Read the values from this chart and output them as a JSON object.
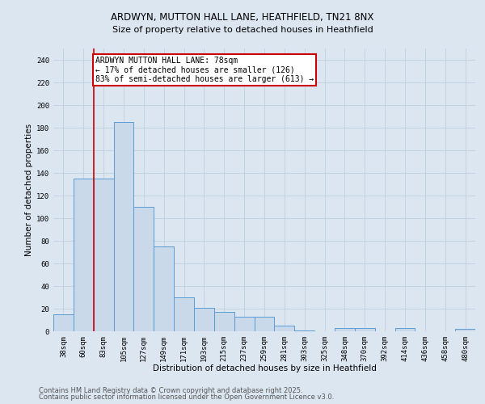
{
  "title_line1": "ARDWYN, MUTTON HALL LANE, HEATHFIELD, TN21 8NX",
  "title_line2": "Size of property relative to detached houses in Heathfield",
  "xlabel": "Distribution of detached houses by size in Heathfield",
  "ylabel": "Number of detached properties",
  "categories": [
    "38sqm",
    "60sqm",
    "83sqm",
    "105sqm",
    "127sqm",
    "149sqm",
    "171sqm",
    "193sqm",
    "215sqm",
    "237sqm",
    "259sqm",
    "281sqm",
    "303sqm",
    "325sqm",
    "348sqm",
    "370sqm",
    "392sqm",
    "414sqm",
    "436sqm",
    "458sqm",
    "480sqm"
  ],
  "values": [
    15,
    135,
    135,
    185,
    110,
    75,
    30,
    21,
    17,
    13,
    13,
    5,
    1,
    0,
    3,
    3,
    0,
    3,
    0,
    0,
    2
  ],
  "bar_color": "#c9d9ea",
  "bar_edge_color": "#5b9bd5",
  "red_line_x": 1.5,
  "annotation_text": "ARDWYN MUTTON HALL LANE: 78sqm\n← 17% of detached houses are smaller (126)\n83% of semi-detached houses are larger (613) →",
  "annotation_box_color": "#ffffff",
  "annotation_box_edge": "#cc0000",
  "red_line_color": "#cc0000",
  "grid_color": "#c0cfe0",
  "bg_color": "#dce6f1",
  "plot_bg_color": "#dce6f1",
  "ylim": [
    0,
    250
  ],
  "yticks": [
    0,
    20,
    40,
    60,
    80,
    100,
    120,
    140,
    160,
    180,
    200,
    220,
    240
  ],
  "footer_line1": "Contains HM Land Registry data © Crown copyright and database right 2025.",
  "footer_line2": "Contains public sector information licensed under the Open Government Licence v3.0.",
  "title_fontsize": 8.5,
  "subtitle_fontsize": 8,
  "axis_label_fontsize": 7.5,
  "tick_fontsize": 6.5,
  "annotation_fontsize": 7,
  "footer_fontsize": 6
}
